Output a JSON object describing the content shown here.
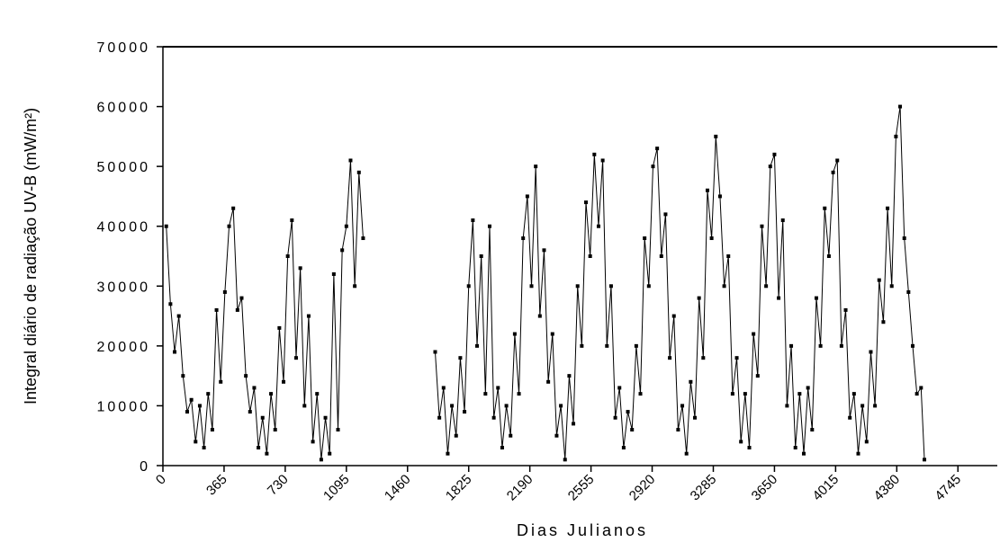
{
  "chart_data": {
    "type": "line",
    "x_label": "Dias Julianos",
    "y_label": "Integral diário de radiação UV-B (mW/m²)",
    "xlim": [
      0,
      4980
    ],
    "xticks": [
      0,
      365,
      730,
      1095,
      1460,
      1825,
      2190,
      2555,
      2920,
      3285,
      3650,
      4015,
      4380,
      4745
    ],
    "ylim": [
      0,
      70000
    ],
    "yticks": [
      0,
      10000,
      20000,
      30000,
      40000,
      50000,
      60000,
      70000
    ],
    "x": [
      20,
      45,
      70,
      95,
      120,
      145,
      170,
      195,
      220,
      245,
      270,
      295,
      320,
      345,
      370,
      395,
      420,
      445,
      470,
      495,
      520,
      545,
      570,
      595,
      620,
      645,
      670,
      695,
      720,
      745,
      770,
      795,
      820,
      845,
      870,
      895,
      920,
      945,
      970,
      995,
      1020,
      1045,
      1070,
      1095,
      1120,
      1145,
      1170,
      1195,
      1400,
      1625,
      1650,
      1675,
      1700,
      1725,
      1750,
      1775,
      1800,
      1825,
      1850,
      1875,
      1900,
      1925,
      1950,
      1975,
      2000,
      2025,
      2050,
      2075,
      2100,
      2125,
      2150,
      2175,
      2200,
      2225,
      2250,
      2275,
      2300,
      2325,
      2350,
      2375,
      2400,
      2425,
      2450,
      2475,
      2500,
      2525,
      2550,
      2575,
      2600,
      2625,
      2650,
      2675,
      2700,
      2725,
      2750,
      2775,
      2800,
      2825,
      2850,
      2875,
      2900,
      2925,
      2950,
      2975,
      3000,
      3025,
      3050,
      3075,
      3100,
      3125,
      3150,
      3175,
      3200,
      3225,
      3250,
      3275,
      3300,
      3325,
      3350,
      3375,
      3400,
      3425,
      3450,
      3475,
      3500,
      3525,
      3550,
      3575,
      3600,
      3625,
      3650,
      3675,
      3700,
      3725,
      3750,
      3775,
      3800,
      3825,
      3850,
      3875,
      3900,
      3925,
      3950,
      3975,
      4000,
      4025,
      4050,
      4075,
      4100,
      4125,
      4150,
      4175,
      4200,
      4225,
      4250,
      4275,
      4300,
      4325,
      4350,
      4375,
      4400,
      4425,
      4450,
      4475,
      4500,
      4525,
      4545
    ],
    "series": [
      {
        "color": "#000000",
        "values": [
          40000,
          27000,
          19000,
          25000,
          15000,
          9000,
          11000,
          4000,
          10000,
          3000,
          12000,
          6000,
          26000,
          14000,
          29000,
          40000,
          43000,
          26000,
          28000,
          15000,
          9000,
          13000,
          3000,
          8000,
          2000,
          12000,
          6000,
          23000,
          14000,
          35000,
          41000,
          18000,
          33000,
          10000,
          25000,
          4000,
          12000,
          1000,
          8000,
          2000,
          32000,
          6000,
          36000,
          40000,
          51000,
          30000,
          49000,
          38000,
          null,
          19000,
          8000,
          13000,
          2000,
          10000,
          5000,
          18000,
          9000,
          30000,
          41000,
          20000,
          35000,
          12000,
          40000,
          8000,
          13000,
          3000,
          10000,
          5000,
          22000,
          12000,
          38000,
          45000,
          30000,
          50000,
          25000,
          36000,
          14000,
          22000,
          5000,
          10000,
          1000,
          15000,
          7000,
          30000,
          20000,
          44000,
          35000,
          52000,
          40000,
          51000,
          20000,
          30000,
          8000,
          13000,
          3000,
          9000,
          6000,
          20000,
          12000,
          38000,
          30000,
          50000,
          53000,
          35000,
          42000,
          18000,
          25000,
          6000,
          10000,
          2000,
          14000,
          8000,
          28000,
          18000,
          46000,
          38000,
          55000,
          45000,
          30000,
          35000,
          12000,
          18000,
          4000,
          12000,
          3000,
          22000,
          15000,
          40000,
          30000,
          50000,
          52000,
          28000,
          41000,
          10000,
          20000,
          3000,
          12000,
          2000,
          13000,
          6000,
          28000,
          20000,
          43000,
          35000,
          49000,
          51000,
          20000,
          26000,
          8000,
          12000,
          2000,
          10000,
          4000,
          19000,
          10000,
          31000,
          24000,
          43000,
          30000,
          55000,
          60000,
          38000,
          29000,
          20000,
          12000,
          13000,
          1000
        ]
      }
    ]
  }
}
